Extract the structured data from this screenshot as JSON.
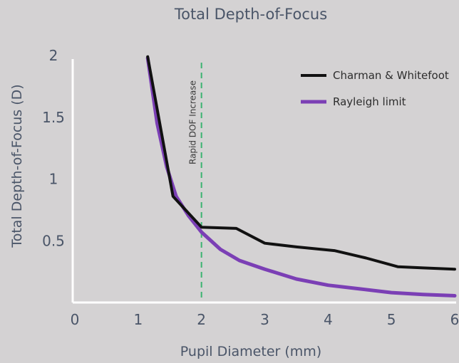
{
  "chart_data": {
    "type": "line",
    "title": "Total Depth-of-Focus",
    "xlabel": "Pupil Diameter (mm)",
    "ylabel": "Total Depth-of-Focus (D)",
    "xlim": [
      0,
      6
    ],
    "ylim": [
      0,
      2
    ],
    "x_ticks": [
      0,
      1,
      2,
      3,
      4,
      5,
      6
    ],
    "y_ticks": [
      0.5,
      1,
      1.5,
      2
    ],
    "legend_position": "top-right",
    "grid": false,
    "series": [
      {
        "name": "Charman & Whitefoot",
        "color": "#111111",
        "x": [
          1.15,
          1.55,
          2.0,
          2.55,
          3.0,
          3.5,
          4.1,
          4.6,
          5.1,
          5.5,
          6.0
        ],
        "y": [
          1.99,
          0.86,
          0.61,
          0.6,
          0.48,
          0.45,
          0.42,
          0.36,
          0.29,
          0.28,
          0.27
        ]
      },
      {
        "name": "Rayleigh limit",
        "color": "#7b3fb5",
        "x": [
          1.15,
          1.3,
          1.45,
          1.6,
          1.8,
          2.0,
          2.3,
          2.6,
          3.0,
          3.5,
          4.0,
          4.5,
          5.0,
          5.5,
          6.0
        ],
        "y": [
          1.98,
          1.45,
          1.1,
          0.86,
          0.7,
          0.57,
          0.43,
          0.34,
          0.27,
          0.19,
          0.14,
          0.11,
          0.08,
          0.065,
          0.055
        ]
      }
    ],
    "annotations": [
      {
        "type": "vline",
        "x": 2,
        "color": "#3cb371",
        "style": "dashed",
        "label": "Rapid DOF Increase"
      }
    ]
  }
}
